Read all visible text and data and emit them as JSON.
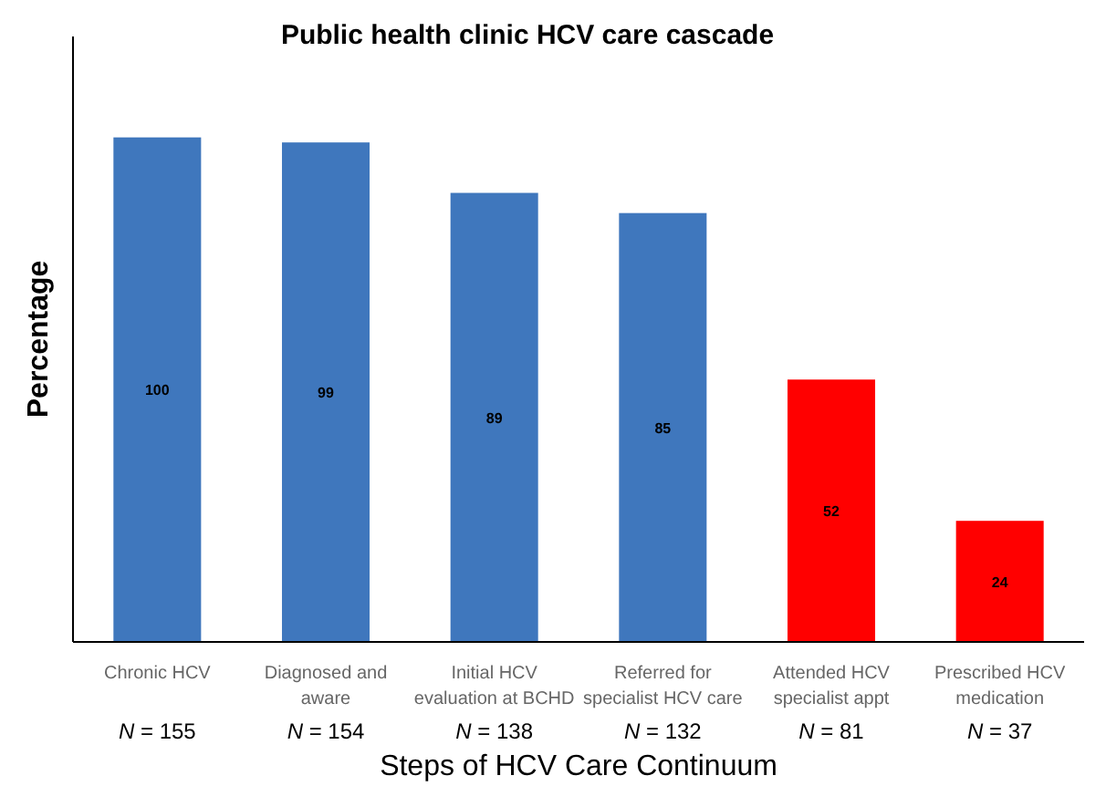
{
  "chart_data": {
    "type": "bar",
    "title": "Public health clinic HCV care cascade",
    "xlabel": "Steps of HCV Care Continuum",
    "ylabel": "Percentage",
    "categories": [
      "Chronic HCV\nN = 155",
      "Diagnosed and\naware\nN = 154",
      "Initial HCV\nevaluation at BCHD\nN = 138",
      "Referred for\nspecialist HCV care\nN = 132",
      "Attended HCV\nspecialist appt\nN = 81",
      "Prescribed HCV\nmedication\nN = 37"
    ],
    "values": [
      100,
      99,
      89,
      85,
      52,
      24
    ],
    "colors": [
      "#3f77bd",
      "#3f77bd",
      "#3f77bd",
      "#3f77bd",
      "#ff0000",
      "#ff0000"
    ],
    "ylim": [
      0,
      120
    ],
    "data_labels": true
  }
}
